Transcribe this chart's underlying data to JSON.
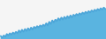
{
  "values": [
    62,
    60,
    63,
    61,
    65,
    63,
    66,
    64,
    67,
    65,
    68,
    66,
    70,
    67,
    71,
    68,
    72,
    69,
    73,
    70,
    74,
    71,
    75,
    73,
    76,
    74,
    77,
    75,
    78,
    76,
    80,
    77,
    82,
    79,
    84,
    81,
    85,
    83,
    87,
    84,
    88,
    85,
    89,
    86,
    90,
    87,
    91,
    88,
    92,
    90,
    93,
    91,
    94,
    92,
    95,
    93,
    96,
    94,
    97,
    95,
    98,
    96,
    99,
    97,
    100,
    98,
    101,
    99,
    102,
    100
  ],
  "line_color": "#4da6d9",
  "fill_color": "#5ab4e0",
  "background_color": "#f5f5f5",
  "linewidth": 1.2,
  "alpha_fill": 1.0
}
